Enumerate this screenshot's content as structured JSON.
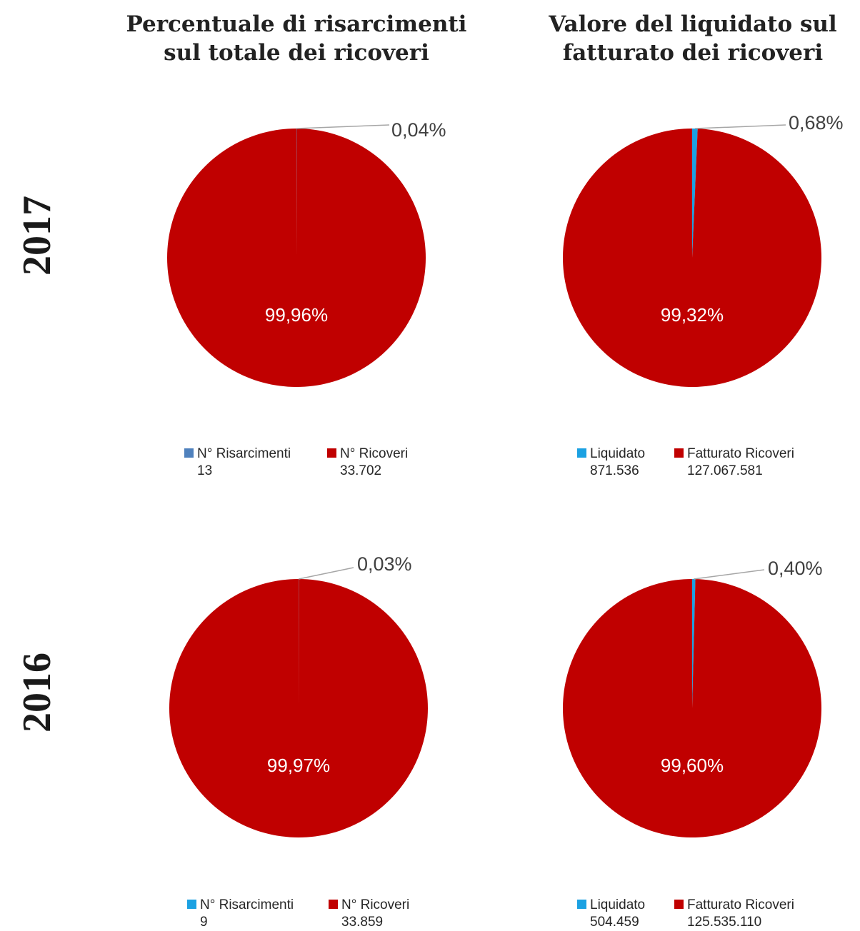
{
  "columns": {
    "left": {
      "line1": "Percentuale di risarcimenti",
      "line2": "sul totale dei ricoveri"
    },
    "right": {
      "line1": "Valore del liquidato sul",
      "line2": "fatturato dei ricoveri"
    }
  },
  "rows": {
    "top": "2017",
    "bottom": "2016"
  },
  "colors": {
    "primary": "#c00000",
    "small_dark": "#4f81bd",
    "small_light": "#1ba1e2"
  },
  "chart_data": [
    {
      "type": "pie",
      "year": "2017",
      "labels": [
        "N° Risarcimenti",
        "N° Ricoveri"
      ],
      "values": [
        13,
        33702
      ],
      "display_values": [
        "13",
        "33.702"
      ],
      "percentages": [
        "0,04%",
        "99,96%"
      ],
      "colors": [
        "#4f81bd",
        "#c00000"
      ]
    },
    {
      "type": "pie",
      "year": "2017",
      "labels": [
        "Liquidato",
        "Fatturato Ricoveri"
      ],
      "values": [
        871536,
        127067581
      ],
      "display_values": [
        "871.536",
        "127.067.581"
      ],
      "percentages": [
        "0,68%",
        "99,32%"
      ],
      "colors": [
        "#1ba1e2",
        "#c00000"
      ]
    },
    {
      "type": "pie",
      "year": "2016",
      "labels": [
        "N° Risarcimenti",
        "N° Ricoveri"
      ],
      "values": [
        9,
        33859
      ],
      "display_values": [
        "9",
        "33.859"
      ],
      "percentages": [
        "0,03%",
        "99,97%"
      ],
      "colors": [
        "#1ba1e2",
        "#c00000"
      ]
    },
    {
      "type": "pie",
      "year": "2016",
      "labels": [
        "Liquidato",
        "Fatturato Ricoveri"
      ],
      "values": [
        504459,
        125535110
      ],
      "display_values": [
        "504.459",
        "125.535.110"
      ],
      "percentages": [
        "0,40%",
        "99,60%"
      ],
      "colors": [
        "#1ba1e2",
        "#c00000"
      ]
    }
  ]
}
